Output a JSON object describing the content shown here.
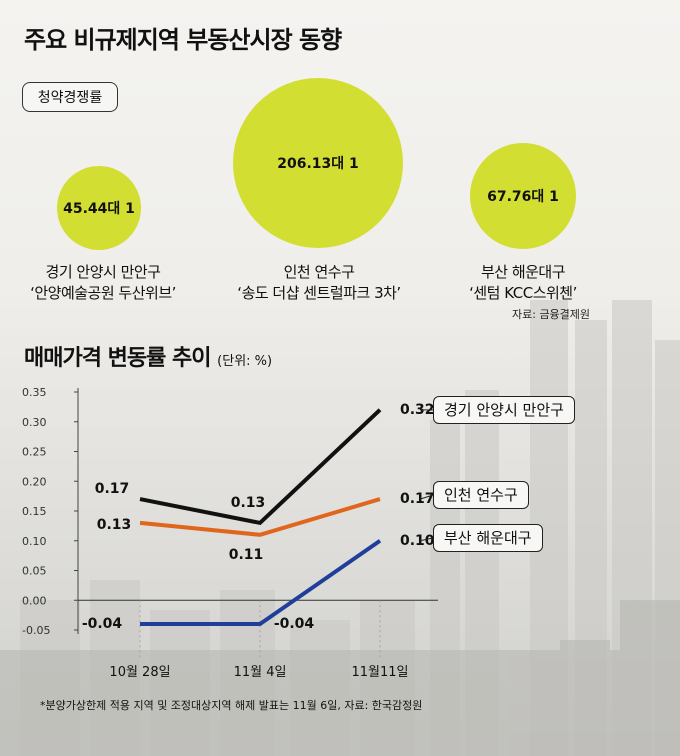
{
  "title": "주요 비규제지역 부동산시장 동향",
  "subscription": {
    "label": "청약경쟁률",
    "bubbles": [
      {
        "value": "45.44대 1",
        "label_line1": "경기 안양시 만안구",
        "label_line2": "‘안양예술공원 두산위브’"
      },
      {
        "value": "206.13대 1",
        "label_line1": "인천 연수구",
        "label_line2": "‘송도 더샵 센트럴파크 3차’"
      },
      {
        "value": "67.76대 1",
        "label_line1": "부산 해운대구",
        "label_line2": "‘센텀 KCC스위첸’"
      }
    ],
    "source": "자료: 금융결제원"
  },
  "section2": {
    "title": "매매가격 변동률 추이",
    "unit": "(단위: %)"
  },
  "chart_data": {
    "type": "line",
    "title": "매매가격 변동률 추이",
    "ylabel": "",
    "xlabel": "",
    "x": [
      "10월 28일",
      "11월 4일",
      "11월11일"
    ],
    "ylim": [
      -0.05,
      0.35
    ],
    "yticks": [
      "0.35",
      "0.30",
      "0.25",
      "0.20",
      "0.15",
      "0.10",
      "0.05",
      "0.00",
      "-0.05"
    ],
    "grid": false,
    "series": [
      {
        "name": "경기 안양시 만안구",
        "values": [
          0.17,
          0.13,
          0.32
        ],
        "labels": [
          "0.17",
          "0.13",
          "0.32"
        ],
        "color": "#111111"
      },
      {
        "name": "인천 연수구",
        "values": [
          0.13,
          0.11,
          0.17
        ],
        "labels": [
          "0.13",
          "0.11",
          "0.17"
        ],
        "color": "#e0661e"
      },
      {
        "name": "부산 해운대구",
        "values": [
          -0.04,
          -0.04,
          0.1
        ],
        "labels": [
          "-0.04",
          "-0.04",
          "0.10"
        ],
        "color": "#1f3f9a"
      }
    ]
  },
  "footnote": "*분양가상한제 적용 지역 및 조정대상지역 해제 발표는 11월 6일, 자료: 한국감정원"
}
